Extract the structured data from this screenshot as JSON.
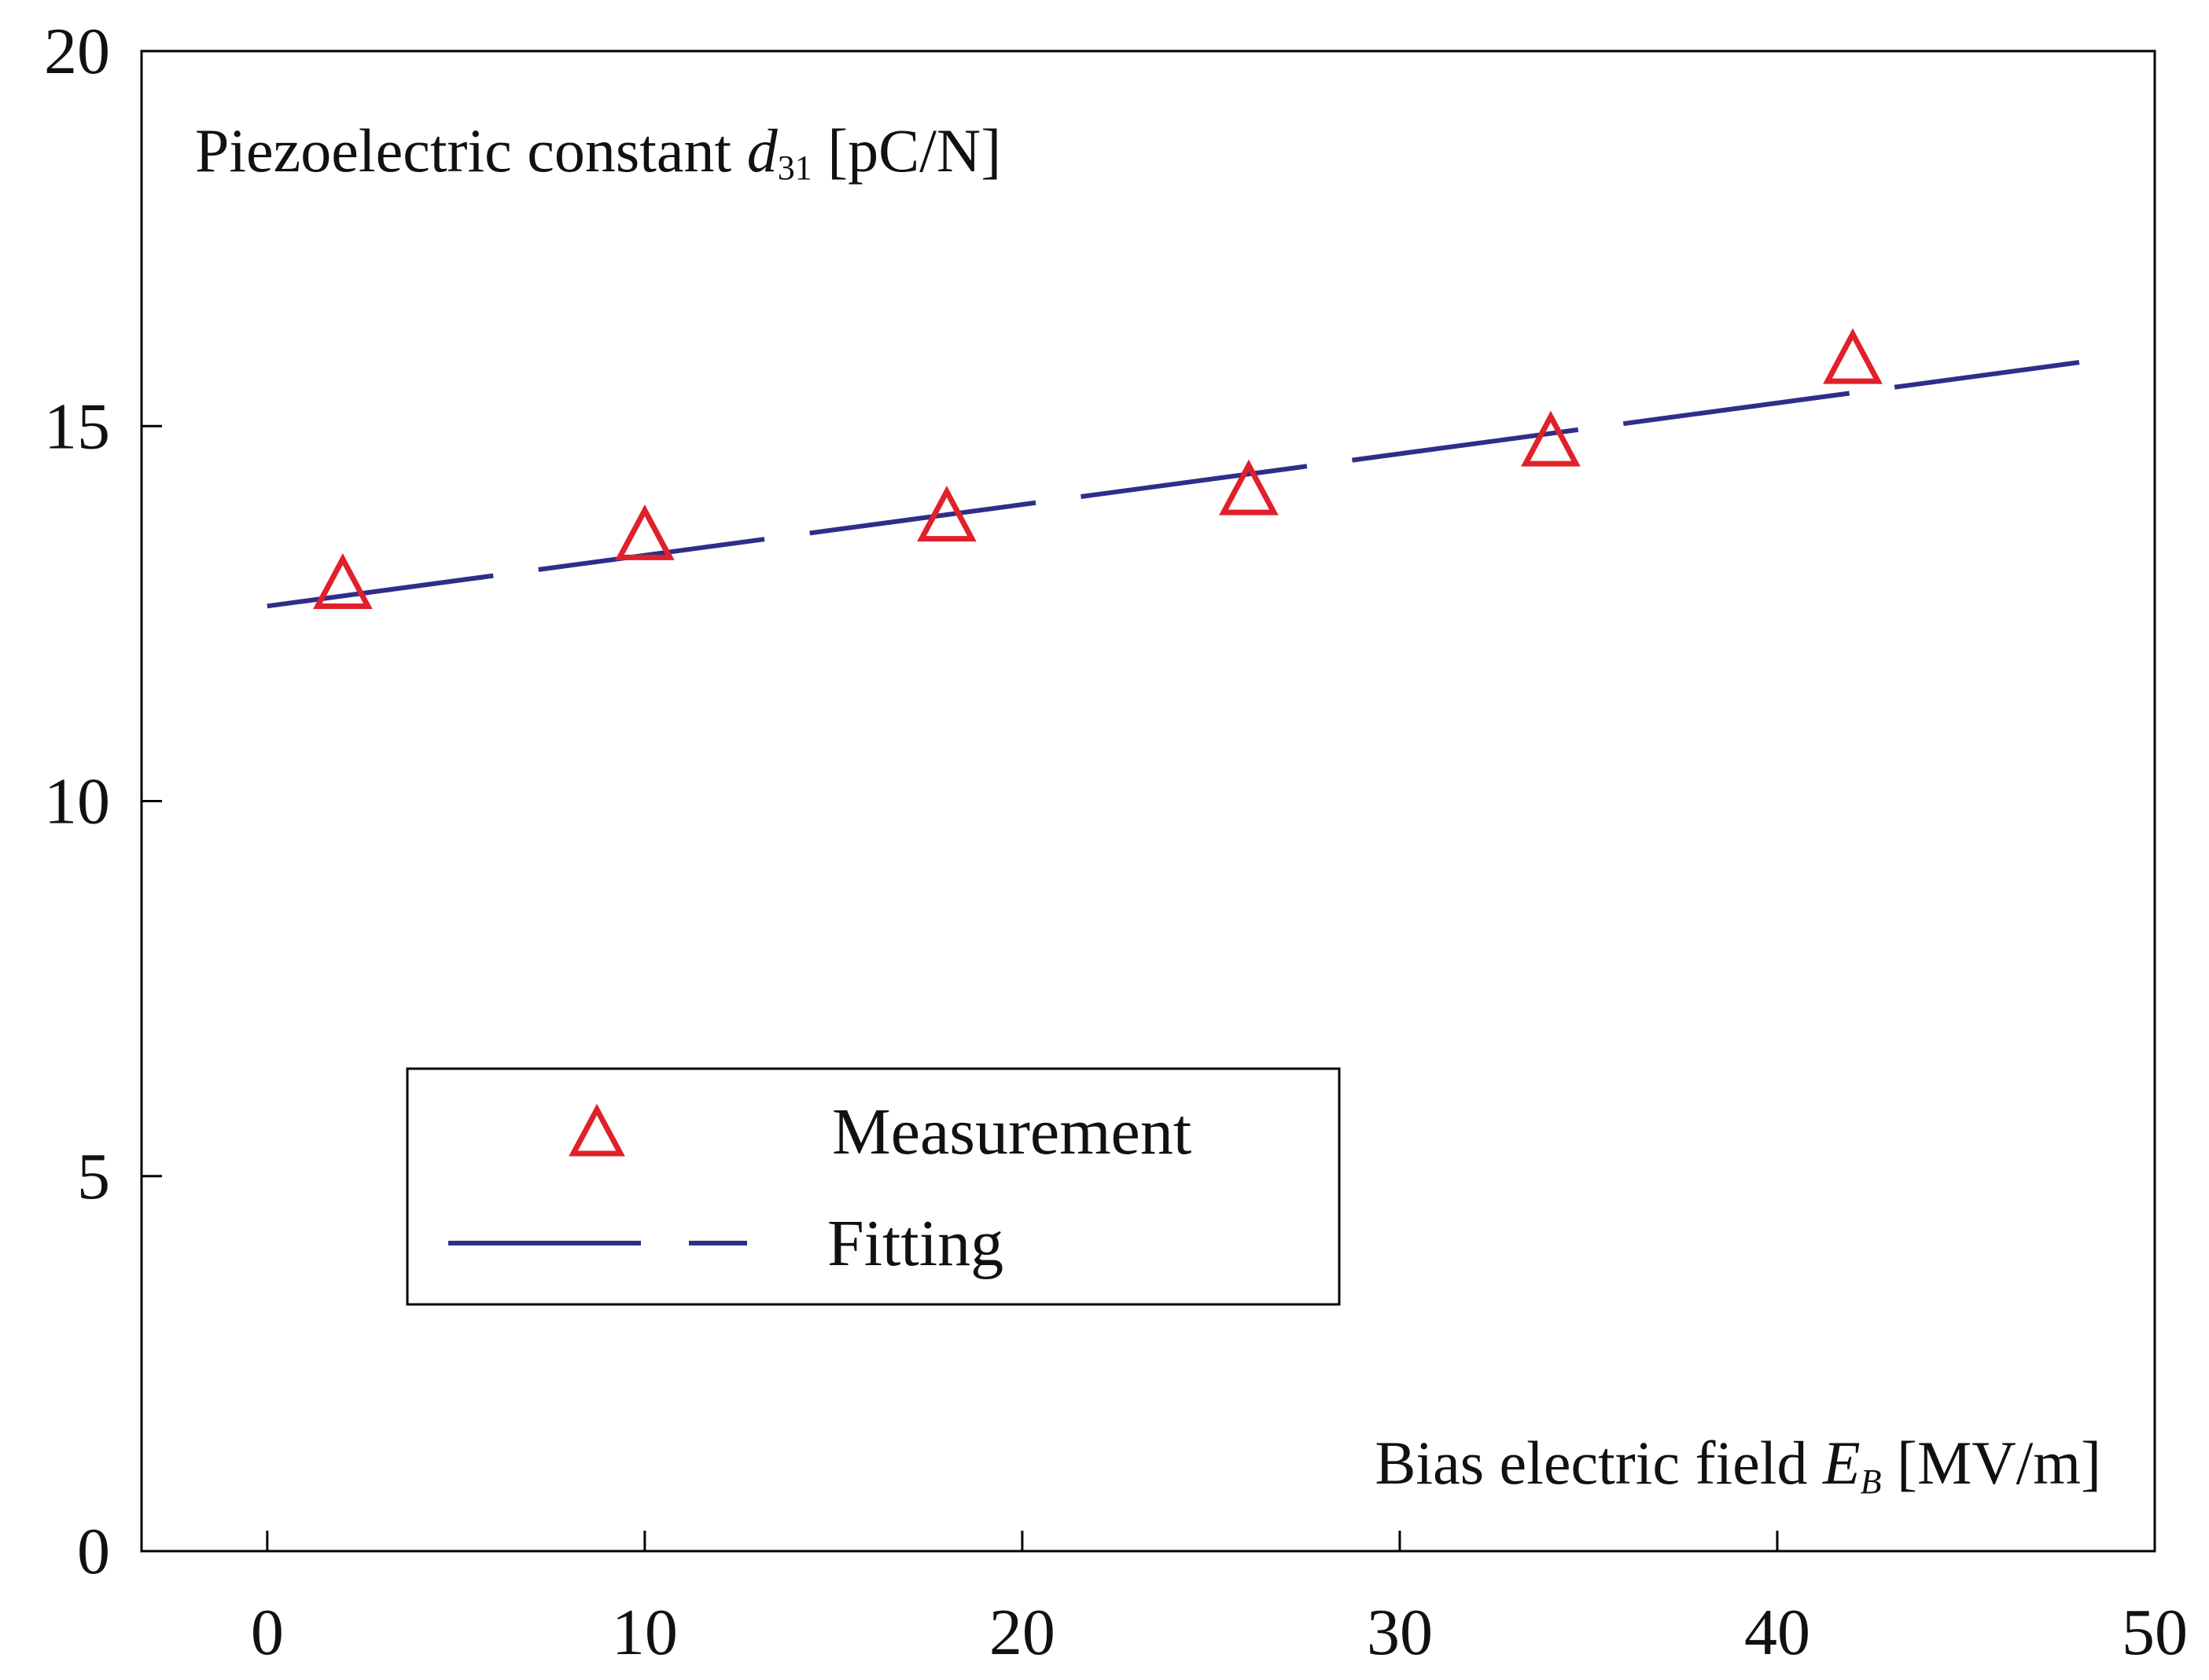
{
  "chart_data": {
    "type": "scatter",
    "title": "",
    "xlabel": {
      "main": "Bias electric field ",
      "symbol": "E",
      "subscript": "B",
      "unit": " [MV/m]"
    },
    "ylabel": {
      "main": "Piezoelectric constant ",
      "symbol": "d",
      "subscript": "31",
      "unit": " [pC/N]"
    },
    "xlim": [
      -3.33,
      50
    ],
    "ylim": [
      0,
      20
    ],
    "x_ticks": [
      0,
      10,
      20,
      30,
      40,
      50
    ],
    "y_ticks": [
      0,
      5,
      10,
      15,
      20
    ],
    "x_tick_labels": [
      "0",
      "10",
      "20",
      "30",
      "40",
      "50"
    ],
    "y_tick_labels": [
      "0",
      "5",
      "10",
      "15",
      "20"
    ],
    "grid": false,
    "legend_position": "lower-left",
    "series": [
      {
        "name": "Measurement",
        "kind": "markers",
        "marker": "triangle",
        "color": "#e0202a",
        "x": [
          2,
          10,
          18,
          26,
          34,
          42
        ],
        "y": [
          12.85,
          13.5,
          13.75,
          14.1,
          14.75,
          15.85
        ]
      },
      {
        "name": "Fitting",
        "kind": "line",
        "style": "long-dash",
        "color": "#2e2e8a",
        "x": [
          0,
          48
        ],
        "y": [
          12.6,
          15.85
        ]
      }
    ]
  }
}
